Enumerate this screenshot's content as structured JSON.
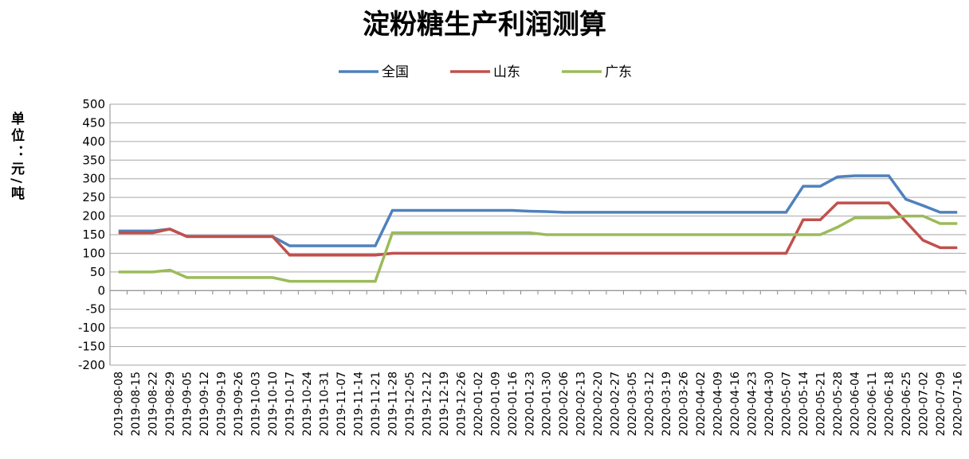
{
  "chart_data": {
    "type": "line",
    "title": "淀粉糖生产利润测算",
    "y_label": "单位：元/吨",
    "categories": [
      "2019-08-08",
      "2019-08-15",
      "2019-08-22",
      "2019-08-29",
      "2019-09-05",
      "2019-09-12",
      "2019-09-19",
      "2019-09-26",
      "2019-10-03",
      "2019-10-10",
      "2019-10-17",
      "2019-10-24",
      "2019-10-31",
      "2019-11-07",
      "2019-11-14",
      "2019-11-21",
      "2019-11-28",
      "2019-12-05",
      "2019-12-12",
      "2019-12-19",
      "2019-12-26",
      "2020-01-02",
      "2020-01-09",
      "2020-01-16",
      "2020-01-23",
      "2020-01-30",
      "2020-02-06",
      "2020-02-13",
      "2020-02-20",
      "2020-02-27",
      "2020-03-05",
      "2020-03-12",
      "2020-03-19",
      "2020-03-26",
      "2020-04-02",
      "2020-04-09",
      "2020-04-16",
      "2020-04-23",
      "2020-04-30",
      "2020-05-07",
      "2020-05-14",
      "2020-05-21",
      "2020-05-28",
      "2020-06-04",
      "2020-06-11",
      "2020-06-18",
      "2020-06-25",
      "2020-07-02",
      "2020-07-09",
      "2020-07-16"
    ],
    "series": [
      {
        "name": "全国",
        "color": "#4f81bd",
        "values": [
          160,
          160,
          160,
          165,
          145,
          145,
          145,
          145,
          145,
          145,
          120,
          120,
          120,
          120,
          120,
          120,
          215,
          215,
          215,
          215,
          215,
          215,
          215,
          215,
          213,
          212,
          210,
          210,
          210,
          210,
          210,
          210,
          210,
          210,
          210,
          210,
          210,
          210,
          210,
          210,
          280,
          280,
          305,
          308,
          308,
          308,
          245,
          228,
          210,
          210
        ]
      },
      {
        "name": "山东",
        "color": "#c0504d",
        "values": [
          155,
          155,
          155,
          165,
          145,
          145,
          145,
          145,
          145,
          145,
          95,
          95,
          95,
          95,
          95,
          95,
          100,
          100,
          100,
          100,
          100,
          100,
          100,
          100,
          100,
          100,
          100,
          100,
          100,
          100,
          100,
          100,
          100,
          100,
          100,
          100,
          100,
          100,
          100,
          100,
          190,
          190,
          235,
          235,
          235,
          235,
          185,
          135,
          115,
          115
        ]
      },
      {
        "name": "广东",
        "color": "#9bbb59",
        "values": [
          50,
          50,
          50,
          55,
          35,
          35,
          35,
          35,
          35,
          35,
          25,
          25,
          25,
          25,
          25,
          25,
          155,
          155,
          155,
          155,
          155,
          155,
          155,
          155,
          155,
          150,
          150,
          150,
          150,
          150,
          150,
          150,
          150,
          150,
          150,
          150,
          150,
          150,
          150,
          150,
          150,
          150,
          170,
          195,
          195,
          195,
          200,
          200,
          180,
          180
        ]
      }
    ],
    "ylim": [
      -200,
      500
    ],
    "yticks": [
      -200,
      -150,
      -100,
      -50,
      0,
      50,
      100,
      150,
      200,
      250,
      300,
      350,
      400,
      450,
      500
    ],
    "grid": true
  }
}
